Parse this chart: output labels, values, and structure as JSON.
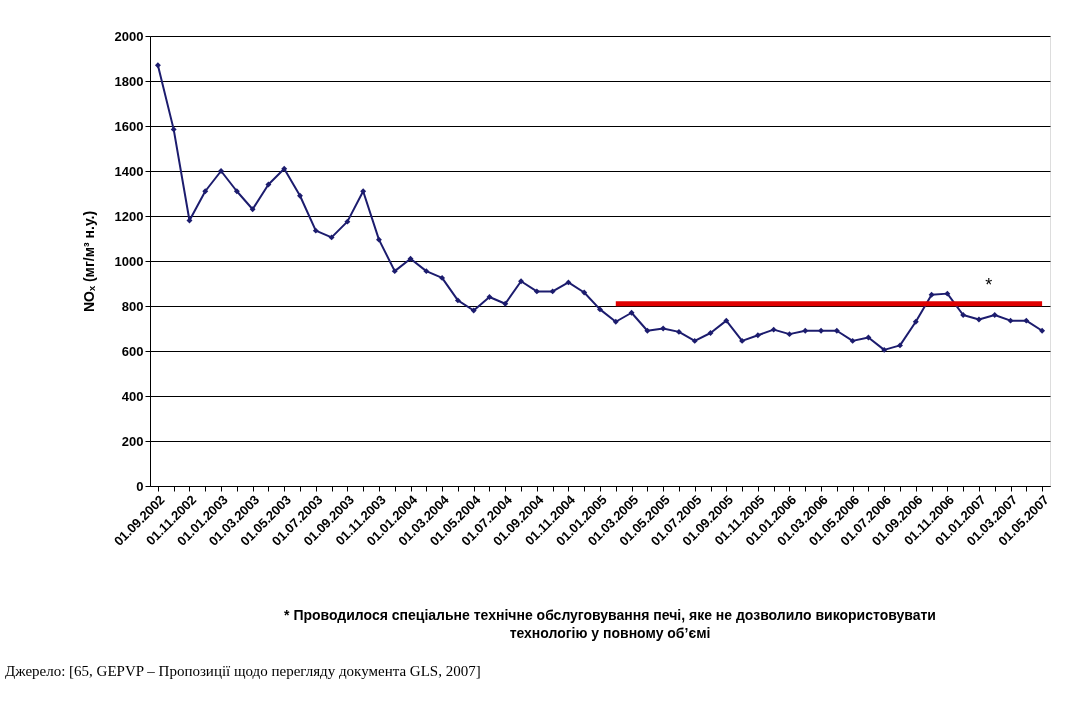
{
  "chart_data": {
    "type": "line",
    "ylabel": "NOₓ (мг/м³ н.у.)",
    "categories": [
      "01.09.2002",
      null,
      "01.11.2002",
      null,
      "01.01.2003",
      null,
      "01.03.2003",
      null,
      "01.05.2003",
      null,
      "01.07.2003",
      null,
      "01.09.2003",
      null,
      "01.11.2003",
      null,
      "01.01.2004",
      null,
      "01.03.2004",
      null,
      "01.05.2004",
      null,
      "01.07.2004",
      null,
      "01.09.2004",
      null,
      "01.11.2004",
      null,
      "01.01.2005",
      null,
      "01.03.2005",
      null,
      "01.05.2005",
      null,
      "01.07.2005",
      null,
      "01.09.2005",
      null,
      "01.11.2005",
      null,
      "01.01.2006",
      null,
      "01.03.2006",
      null,
      "01.05.2006",
      null,
      "01.07.2006",
      null,
      "01.09.2006",
      null,
      "01.11.2006",
      null,
      "01.01.2007",
      null,
      "01.03.2007",
      null,
      "01.05.2007"
    ],
    "series": [
      {
        "color": "#1c1c6e",
        "values": [
          1870,
          1585,
          1180,
          1310,
          1400,
          1310,
          1230,
          1340,
          1410,
          1290,
          1135,
          1105,
          1175,
          1310,
          1095,
          955,
          1010,
          955,
          925,
          825,
          780,
          840,
          810,
          910,
          865,
          865,
          905,
          860,
          785,
          730,
          770,
          690,
          700,
          685,
          645,
          680,
          735,
          645,
          670,
          695,
          675,
          690,
          690,
          690,
          645,
          660,
          605,
          625,
          730,
          850,
          855,
          760,
          740,
          760,
          735,
          735,
          690
        ]
      },
      {
        "color": "#e00000",
        "marker": "none",
        "values": [
          null,
          null,
          null,
          null,
          null,
          null,
          null,
          null,
          null,
          null,
          null,
          null,
          null,
          null,
          null,
          null,
          null,
          null,
          null,
          null,
          null,
          null,
          null,
          null,
          null,
          null,
          null,
          null,
          null,
          810,
          810,
          810,
          810,
          810,
          810,
          810,
          810,
          810,
          810,
          810,
          810,
          810,
          810,
          810,
          810,
          810,
          810,
          810,
          810,
          810,
          810,
          810,
          810,
          810,
          810,
          810,
          810
        ]
      }
    ],
    "ylim": [
      0,
      2000
    ],
    "yticks": [
      0,
      200,
      400,
      600,
      800,
      1000,
      1200,
      1400,
      1600,
      1800,
      2000
    ],
    "grid": "y",
    "marker": "diamond",
    "line_style": "solid",
    "annotations": [
      "*",
      "* Проводилося спеціальне технічне обслуговування печі, яке не дозволило використовувати технологію у повному об’ємі",
      "Джерело: [65, GEPVP – Пропозиції щодо перегляду документа GLS, 2007]"
    ]
  }
}
